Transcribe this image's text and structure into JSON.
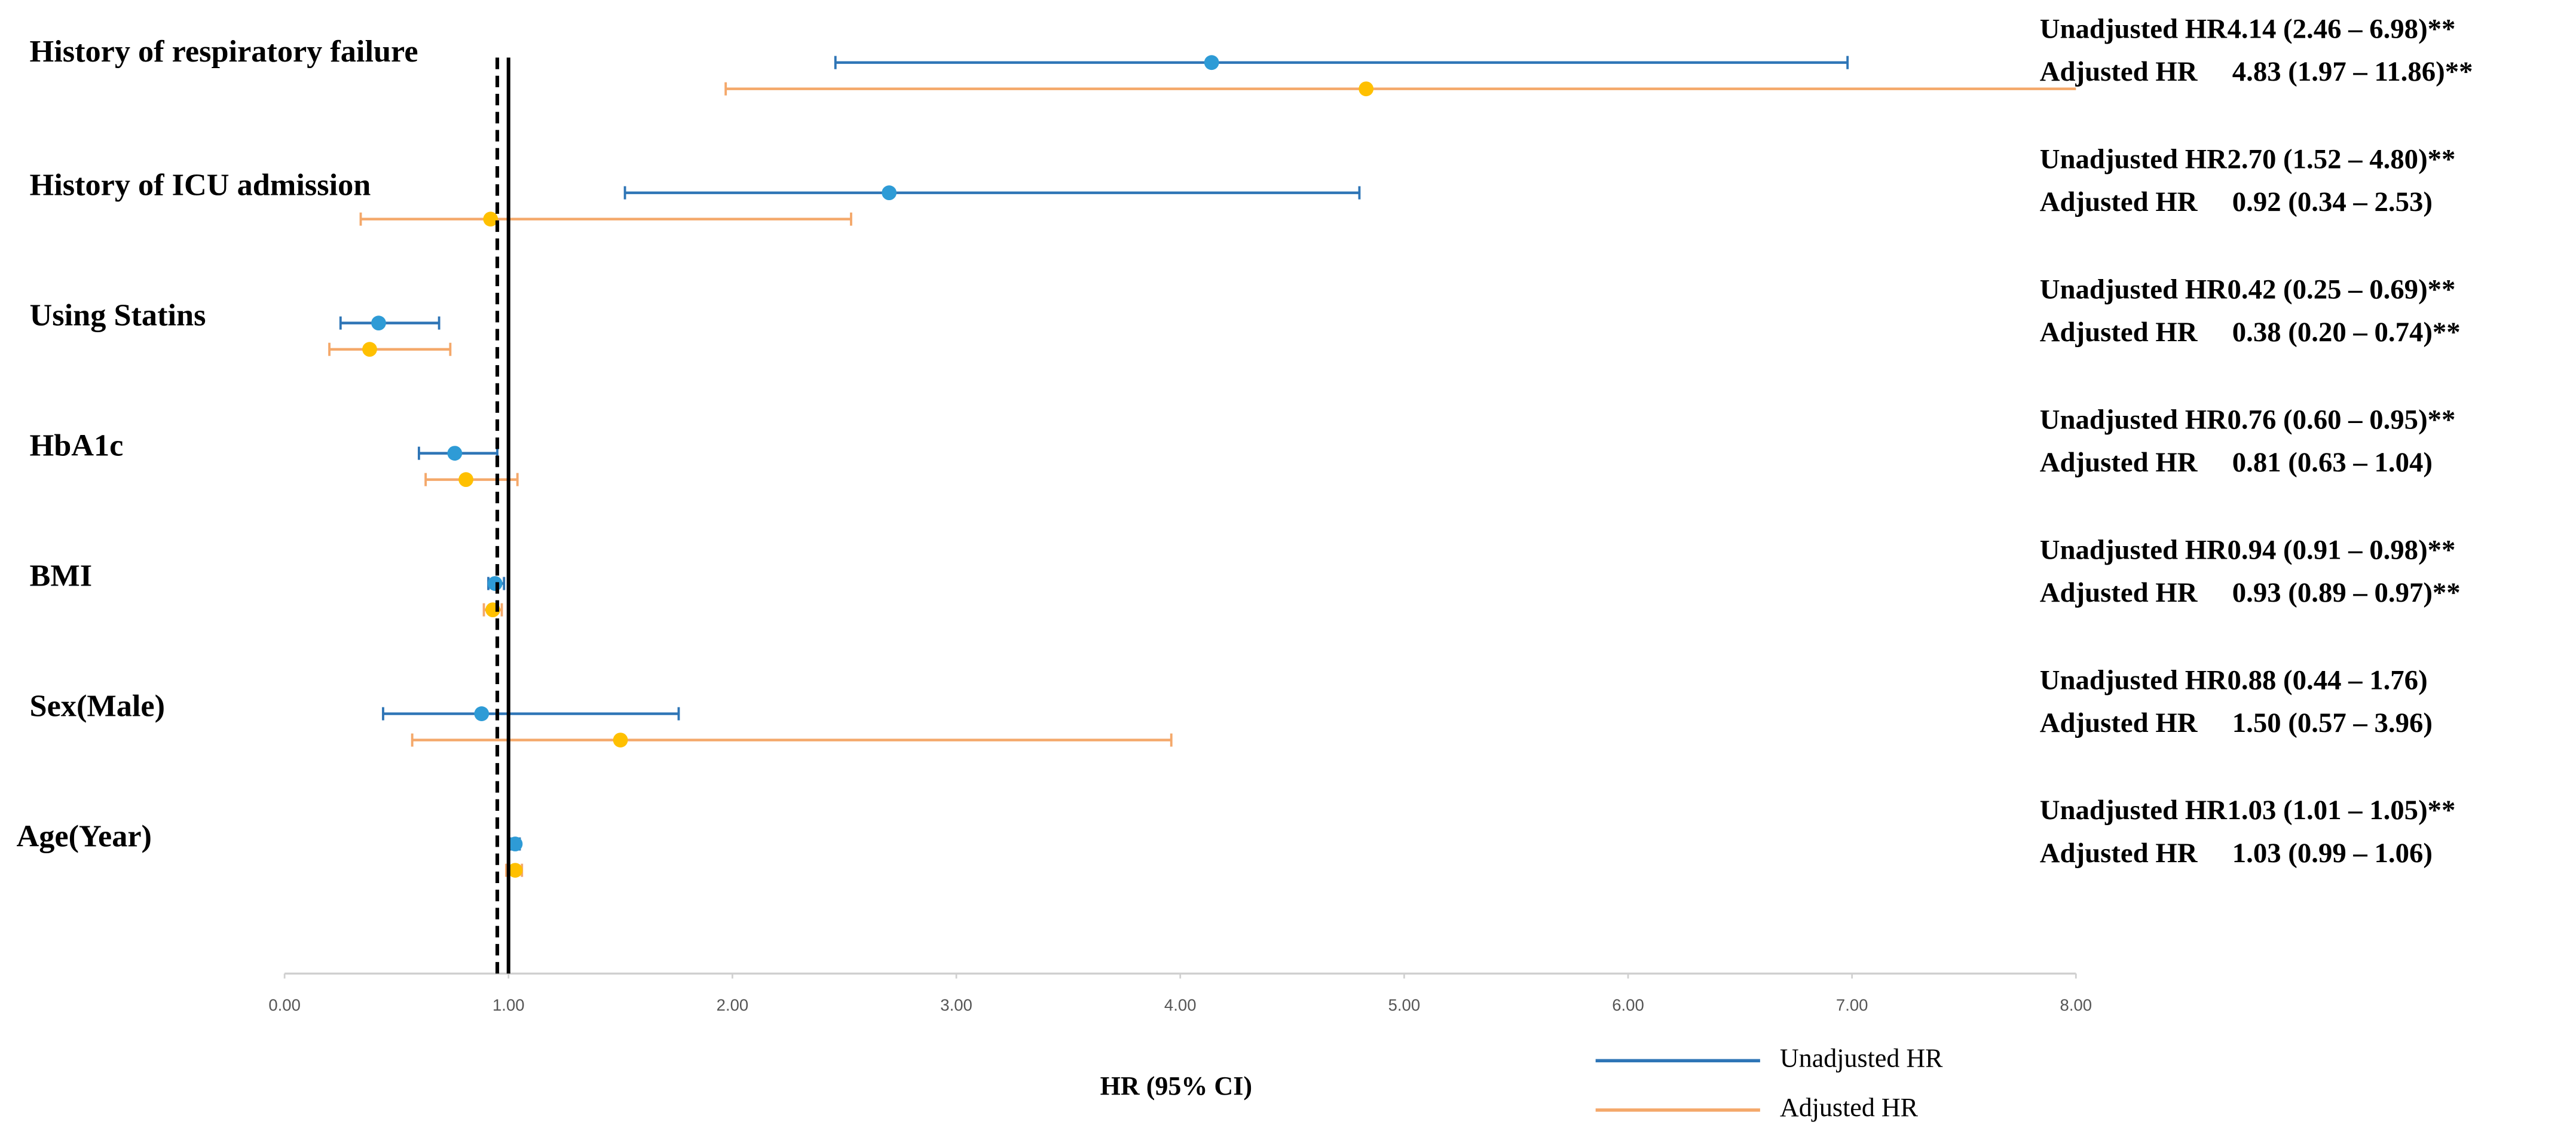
{
  "chart_data": {
    "type": "forest",
    "x_label": "HR (95% CI)",
    "categories": [
      "History of respiratory failure",
      "History of ICU admission",
      "Using Statins",
      "HbA1c",
      "BMI",
      "Sex(Male)",
      "Age(Year)"
    ],
    "series": [
      {
        "name": "Unadjusted HR",
        "color": "#2e75b6",
        "marker_color": "#2e9bd6",
        "values": [
          4.14,
          2.7,
          0.42,
          0.76,
          0.94,
          0.88,
          1.03
        ],
        "lower": [
          2.46,
          1.52,
          0.25,
          0.6,
          0.91,
          0.44,
          1.01
        ],
        "upper": [
          6.98,
          4.8,
          0.69,
          0.95,
          0.98,
          1.76,
          1.05
        ],
        "value_labels": [
          "4.14 (2.46 – 6.98)**",
          "2.70 (1.52 – 4.80)**",
          "0.42 (0.25 – 0.69)**",
          "0.76 (0.60 – 0.95)**",
          "0.94 (0.91 – 0.98)**",
          "0.88 (0.44 – 1.76)",
          "1.03 (1.01 – 1.05)**"
        ]
      },
      {
        "name": "Adjusted HR",
        "color": "#f4a86a",
        "marker_color": "#ffc000",
        "values": [
          4.83,
          0.92,
          0.38,
          0.81,
          0.93,
          1.5,
          1.03
        ],
        "lower": [
          1.97,
          0.34,
          0.2,
          0.63,
          0.89,
          0.57,
          0.99
        ],
        "upper": [
          11.86,
          2.53,
          0.74,
          1.04,
          0.97,
          3.96,
          1.06
        ],
        "value_labels": [
          "4.83 (1.97 – 11.86)**",
          "0.92 (0.34 – 2.53)",
          "0.38 (0.20 – 0.74)**",
          "0.81 (0.63 – 1.04)",
          "0.93 (0.89 – 0.97)**",
          "1.50 (0.57 – 3.96)",
          "1.03 (0.99 – 1.06)"
        ]
      }
    ],
    "xlim": [
      0,
      8
    ],
    "xticks": [
      {
        "value": 0,
        "label": "0.00"
      },
      {
        "value": 1,
        "label": "1.00"
      },
      {
        "value": 2,
        "label": "2.00"
      },
      {
        "value": 3,
        "label": "3.00"
      },
      {
        "value": 4,
        "label": "4.00"
      },
      {
        "value": 5,
        "label": "5.00"
      },
      {
        "value": 6,
        "label": "6.00"
      },
      {
        "value": 7,
        "label": "7.00"
      },
      {
        "value": 8,
        "label": "8.00"
      }
    ],
    "reference_lines": [
      {
        "value": 1,
        "style": "solid"
      },
      {
        "value": 0.95,
        "style": "dashed"
      }
    ]
  }
}
